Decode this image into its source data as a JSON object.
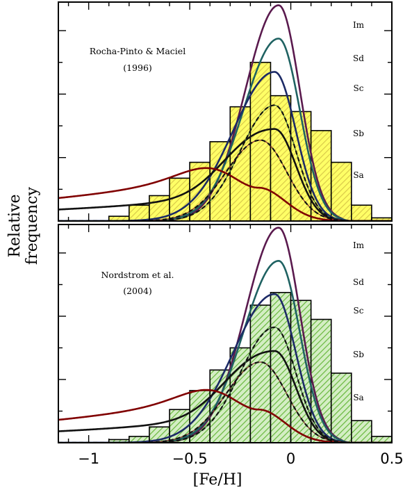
{
  "chart_data": [
    {
      "type": "bar",
      "panel": "top",
      "annotation": [
        "Rocha-Pinto & Maciel",
        "(1996)"
      ],
      "bin_edges": [
        -0.9,
        -0.8,
        -0.7,
        -0.6,
        -0.5,
        -0.4,
        -0.3,
        -0.2,
        -0.1,
        0.0,
        0.1,
        0.2,
        0.3,
        0.4
      ],
      "values": [
        0.03,
        0.1,
        0.16,
        0.27,
        0.37,
        0.5,
        0.72,
        1.0,
        0.79,
        0.69,
        0.57,
        0.37,
        0.1,
        0.02
      ],
      "fill": "#ffff66",
      "hatch": "#d9c94a",
      "series": [
        {
          "name": "Im",
          "mu": -0.06,
          "sl": 0.165,
          "sr": 0.105,
          "amp": 1.36,
          "tail": 0.0,
          "color": "#5a1a4e",
          "dashed": false
        },
        {
          "name": "Sd",
          "mu": -0.06,
          "sl": 0.175,
          "sr": 0.105,
          "amp": 1.15,
          "tail": 0.0,
          "color": "#1f6262",
          "dashed": false
        },
        {
          "name": "Sc",
          "mu": -0.08,
          "sl": 0.205,
          "sr": 0.105,
          "amp": 0.94,
          "tail": 0.0,
          "color": "#1c2a66",
          "dashed": false
        },
        {
          "name": "Sb",
          "mu": -0.08,
          "sl": 0.2,
          "sr": 0.105,
          "amp": 0.58,
          "tail": 0.13,
          "color": "#111111",
          "dashed": false
        },
        {
          "name": "Sa",
          "mu": -0.16,
          "sl": 0.24,
          "sr": 0.13,
          "amp": 0.21,
          "tail": 0.26,
          "color": "#800000",
          "dashed": false
        },
        {
          "name": "Sb",
          "mu": -0.08,
          "sl": 0.17,
          "sr": 0.105,
          "amp": 0.73,
          "tail": 0.0,
          "color": "#111111",
          "dashed": true
        },
        {
          "name": "Sa",
          "mu": -0.15,
          "sl": 0.17,
          "sr": 0.13,
          "amp": 0.51,
          "tail": 0.0,
          "color": "#111111",
          "dashed": true
        }
      ],
      "series_labels": [
        "Im",
        "Sd",
        "Sc",
        "Sb",
        "Sa"
      ],
      "ylim": [
        0,
        1.38
      ]
    },
    {
      "type": "bar",
      "panel": "bottom",
      "annotation": [
        "Nordstrom et al.",
        "(2004)"
      ],
      "bin_edges": [
        -0.9,
        -0.8,
        -0.7,
        -0.6,
        -0.5,
        -0.4,
        -0.3,
        -0.2,
        -0.1,
        0.0,
        0.1,
        0.2,
        0.3,
        0.4
      ],
      "values": [
        0.02,
        0.04,
        0.1,
        0.21,
        0.33,
        0.46,
        0.6,
        0.87,
        0.95,
        0.9,
        0.78,
        0.44,
        0.14,
        0.04
      ],
      "fill": "#d4eec4",
      "hatch": "#67b73c",
      "series": [
        {
          "name": "Im",
          "mu": -0.06,
          "sl": 0.165,
          "sr": 0.105,
          "amp": 1.36,
          "tail": 0.0,
          "color": "#5a1a4e",
          "dashed": false
        },
        {
          "name": "Sd",
          "mu": -0.06,
          "sl": 0.175,
          "sr": 0.105,
          "amp": 1.15,
          "tail": 0.0,
          "color": "#1f6262",
          "dashed": false
        },
        {
          "name": "Sc",
          "mu": -0.08,
          "sl": 0.205,
          "sr": 0.105,
          "amp": 0.94,
          "tail": 0.0,
          "color": "#1c2a66",
          "dashed": false
        },
        {
          "name": "Sb",
          "mu": -0.08,
          "sl": 0.2,
          "sr": 0.105,
          "amp": 0.58,
          "tail": 0.13,
          "color": "#111111",
          "dashed": false
        },
        {
          "name": "Sa",
          "mu": -0.16,
          "sl": 0.24,
          "sr": 0.13,
          "amp": 0.21,
          "tail": 0.26,
          "color": "#800000",
          "dashed": false
        },
        {
          "name": "Sb",
          "mu": -0.08,
          "sl": 0.17,
          "sr": 0.105,
          "amp": 0.73,
          "tail": 0.0,
          "color": "#111111",
          "dashed": true
        },
        {
          "name": "Sa",
          "mu": -0.15,
          "sl": 0.17,
          "sr": 0.13,
          "amp": 0.51,
          "tail": 0.0,
          "color": "#111111",
          "dashed": true
        }
      ],
      "series_labels": [
        "Im",
        "Sd",
        "Sc",
        "Sb",
        "Sa"
      ],
      "ylim": [
        0,
        1.38
      ]
    }
  ],
  "axes": {
    "xlabel": "[Fe/H]",
    "ylabel": "Relative frequency",
    "xlim": [
      -1.15,
      0.5
    ],
    "xticks": [
      -1,
      -0.5,
      0,
      0.5
    ],
    "xtick_labels": [
      "−1",
      "−0.5",
      "0",
      "0.5"
    ]
  }
}
